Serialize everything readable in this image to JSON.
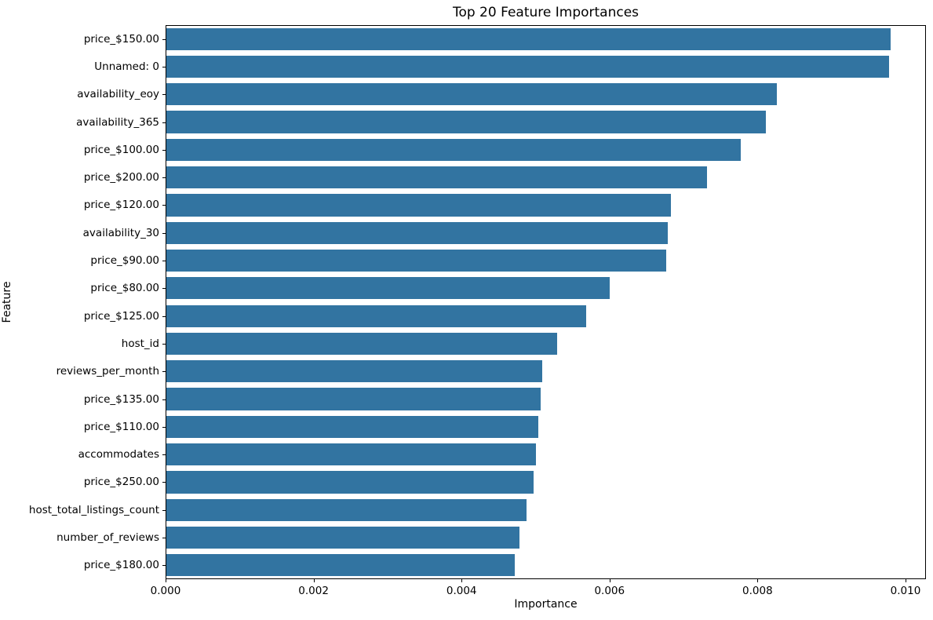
{
  "chart_data": {
    "type": "bar",
    "orientation": "horizontal",
    "title": "Top 20 Feature Importances",
    "xlabel": "Importance",
    "ylabel": "Feature",
    "bar_color": "#3274a1",
    "background_color": "#ffffff",
    "grid": false,
    "legend": null,
    "xlim": [
      0,
      0.010276
    ],
    "xticks": {
      "values": [
        0,
        0.002,
        0.004,
        0.006,
        0.008,
        0.01
      ],
      "labels": [
        "0.000",
        "0.002",
        "0.004",
        "0.006",
        "0.008",
        "0.010"
      ]
    },
    "categories": [
      "price_$150.00",
      "Unnamed: 0",
      "availability_eoy",
      "availability_365",
      "price_$100.00",
      "price_$200.00",
      "price_$120.00",
      "availability_30",
      "price_$90.00",
      "price_$80.00",
      "price_$125.00",
      "host_id",
      "reviews_per_month",
      "price_$135.00",
      "price_$110.00",
      "accommodates",
      "price_$250.00",
      "host_total_listings_count",
      "number_of_reviews",
      "price_$180.00"
    ],
    "values": [
      0.00979,
      0.00977,
      0.00825,
      0.0081,
      0.00776,
      0.00731,
      0.00682,
      0.00678,
      0.00675,
      0.00599,
      0.00567,
      0.00528,
      0.00508,
      0.00506,
      0.00503,
      0.00499,
      0.00496,
      0.00487,
      0.00477,
      0.00471
    ]
  }
}
